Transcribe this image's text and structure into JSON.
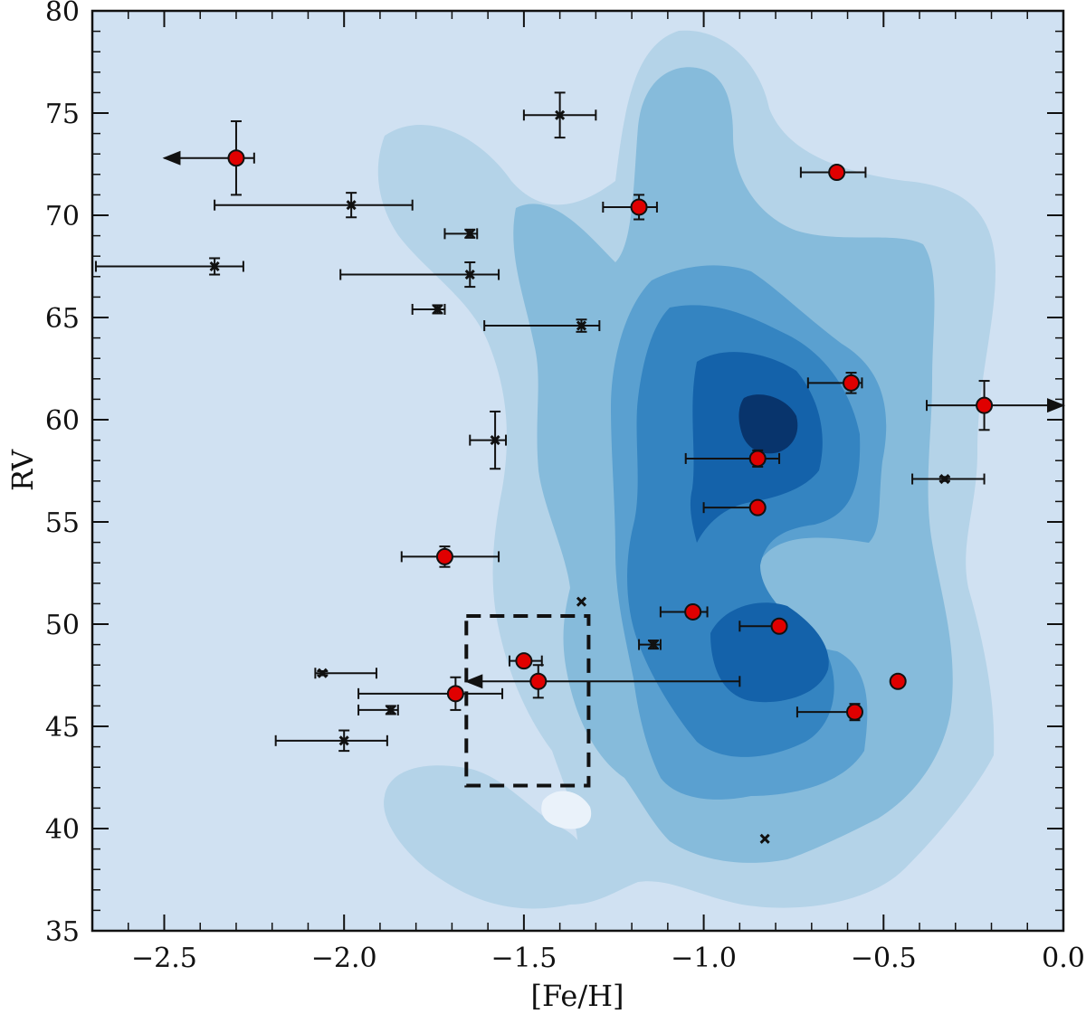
{
  "chart_data": {
    "type": "scatter",
    "title": "",
    "xlabel": "[Fe/H]",
    "ylabel": "RV",
    "xlim": [
      -2.7,
      0.0
    ],
    "ylim": [
      35,
      80
    ],
    "xticks": [
      -2.5,
      -2.0,
      -1.5,
      -1.0,
      -0.5,
      0.0
    ],
    "xtick_labels": [
      "−2.5",
      "−2.0",
      "−1.5",
      "−1.0",
      "−0.5",
      "0.0"
    ],
    "yticks": [
      35,
      40,
      45,
      50,
      55,
      60,
      65,
      70,
      75,
      80
    ],
    "ytick_labels": [
      "35",
      "40",
      "45",
      "50",
      "55",
      "60",
      "65",
      "70",
      "75",
      "80"
    ],
    "colors": {
      "background": "#d0e1f2",
      "contour_levels": [
        "#b4d3e8",
        "#86bbdb",
        "#5aa0d0",
        "#3484c1",
        "#1462aa",
        "#08346c"
      ],
      "low_density": "#eaf2fa",
      "red_marker": "#e00000",
      "black_marker": "#111111"
    },
    "series": [
      {
        "name": "red-circles",
        "marker": "circle",
        "points": [
          {
            "x": -2.3,
            "y": 72.8,
            "xerr": [
              0.0,
              0.05
            ],
            "yerr": 1.8,
            "upper_limit": true
          },
          {
            "x": -1.18,
            "y": 70.4,
            "xerr": [
              0.1,
              0.05
            ],
            "yerr": 0.6
          },
          {
            "x": -0.63,
            "y": 72.1,
            "xerr": [
              0.1,
              0.08
            ]
          },
          {
            "x": -0.59,
            "y": 61.8,
            "xerr": [
              0.12,
              0.03
            ],
            "yerr": 0.5
          },
          {
            "x": -0.22,
            "y": 60.7,
            "xerr": [
              0.16,
              0.0
            ],
            "yerr": 1.2,
            "lower_limit": true
          },
          {
            "x": -0.85,
            "y": 58.1,
            "xerr": [
              0.2,
              0.06
            ],
            "yerr": 0.4
          },
          {
            "x": -0.85,
            "y": 55.7,
            "xerr": [
              0.15,
              0.0
            ]
          },
          {
            "x": -1.72,
            "y": 53.3,
            "xerr": [
              0.12,
              0.15
            ],
            "yerr": 0.5
          },
          {
            "x": -1.03,
            "y": 50.6,
            "xerr": [
              0.09,
              0.04
            ]
          },
          {
            "x": -0.79,
            "y": 49.9,
            "xerr": [
              0.11,
              0.0
            ]
          },
          {
            "x": -1.5,
            "y": 48.2,
            "xerr": [
              0.04,
              0.05
            ]
          },
          {
            "x": -1.46,
            "y": 47.2,
            "xerr": [
              0.0,
              0.56
            ],
            "yerr": 0.8,
            "upper_limit": true
          },
          {
            "x": -1.69,
            "y": 46.6,
            "xerr": [
              0.27,
              0.13
            ],
            "yerr": 0.8
          },
          {
            "x": -0.46,
            "y": 47.2
          },
          {
            "x": -0.58,
            "y": 45.7,
            "xerr": [
              0.16,
              0.0
            ],
            "yerr": 0.4
          }
        ]
      },
      {
        "name": "black-crosses",
        "marker": "x",
        "points": [
          {
            "x": -1.4,
            "y": 74.9,
            "xerr": [
              0.1,
              0.1
            ],
            "yerr": 1.1
          },
          {
            "x": -1.98,
            "y": 70.5,
            "xerr": [
              0.38,
              0.17
            ],
            "yerr": 0.6
          },
          {
            "x": -1.65,
            "y": 69.1,
            "xerr": [
              0.07,
              0.02
            ],
            "yerr": 0.2
          },
          {
            "x": -2.36,
            "y": 67.5,
            "xerr": [
              0.33,
              0.08
            ],
            "yerr": 0.4
          },
          {
            "x": -1.65,
            "y": 67.1,
            "xerr": [
              0.36,
              0.08
            ],
            "yerr": 0.6
          },
          {
            "x": -1.74,
            "y": 65.4,
            "xerr": [
              0.07,
              0.02
            ],
            "yerr": 0.2
          },
          {
            "x": -1.34,
            "y": 64.6,
            "xerr": [
              0.27,
              0.05
            ],
            "yerr": 0.3
          },
          {
            "x": -1.58,
            "y": 59.0,
            "xerr": [
              0.07,
              0.03
            ],
            "yerr": 1.4
          },
          {
            "x": -0.33,
            "y": 57.1,
            "xerr": [
              0.09,
              0.11
            ],
            "yerr": 0.1
          },
          {
            "x": -1.34,
            "y": 51.1
          },
          {
            "x": -1.14,
            "y": 49.0,
            "xerr": [
              0.04,
              0.02
            ],
            "yerr": 0.2
          },
          {
            "x": -2.06,
            "y": 47.6,
            "xerr": [
              0.02,
              0.15
            ],
            "yerr": 0.1
          },
          {
            "x": -1.87,
            "y": 45.8,
            "xerr": [
              0.09,
              0.02
            ],
            "yerr": 0.2
          },
          {
            "x": -2.0,
            "y": 44.3,
            "xerr": [
              0.19,
              0.12
            ],
            "yerr": 0.5
          },
          {
            "x": -0.83,
            "y": 39.5
          }
        ]
      }
    ],
    "highlight_box": {
      "x_range": [
        -1.66,
        -1.32
      ],
      "y_range": [
        42.1,
        50.4
      ],
      "style": "dashed"
    }
  }
}
